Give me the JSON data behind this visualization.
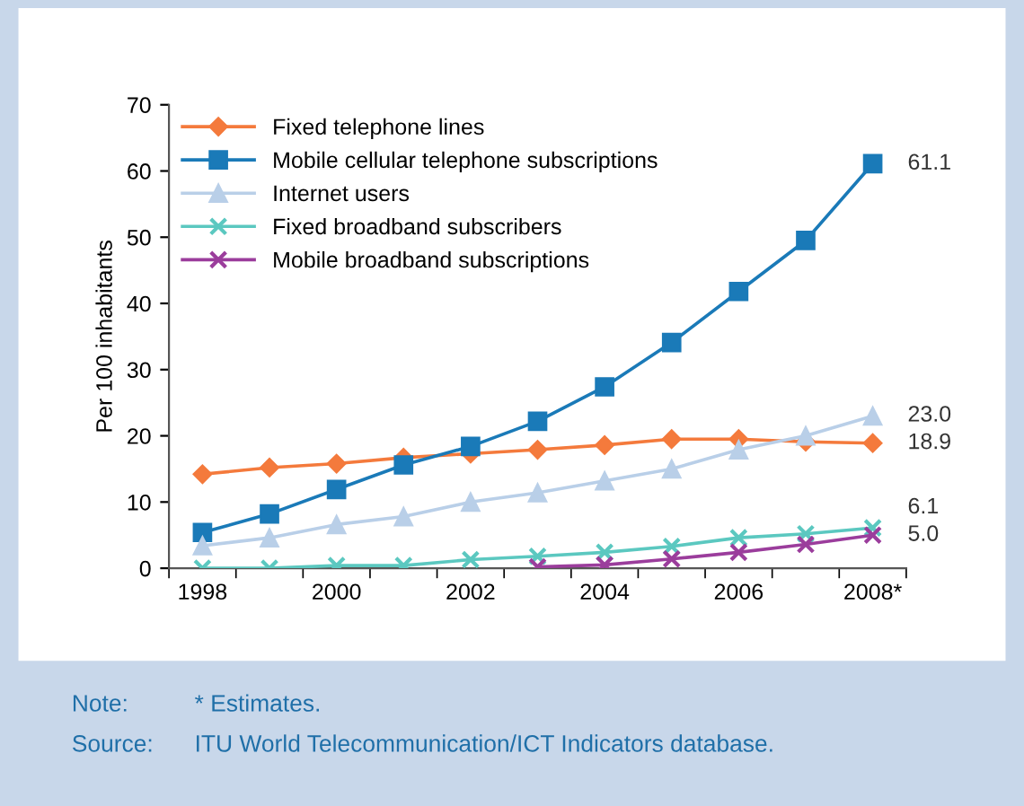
{
  "chart_data": {
    "type": "line",
    "ylabel": "Per 100 inhabitants",
    "categories": [
      "1998",
      null,
      "2000",
      null,
      "2002",
      null,
      "2004",
      null,
      "2006",
      null,
      "2008*"
    ],
    "series": [
      {
        "name": "Fixed telephone lines",
        "color": "#f47a3c",
        "marker": "diamond",
        "values": [
          14.2,
          15.2,
          15.8,
          16.7,
          17.3,
          17.9,
          18.6,
          19.5,
          19.5,
          19.1,
          18.9
        ],
        "value_labels": [
          null,
          null,
          null,
          null,
          null,
          null,
          null,
          null,
          null,
          null,
          "18.9"
        ]
      },
      {
        "name": "Mobile cellular telephone subscriptions",
        "color": "#1a7ab8",
        "marker": "square",
        "values": [
          5.4,
          8.2,
          11.9,
          15.6,
          18.4,
          22.2,
          27.4,
          34.1,
          41.8,
          49.5,
          61.1
        ],
        "value_labels": [
          null,
          null,
          null,
          null,
          null,
          null,
          null,
          null,
          null,
          null,
          "61.1"
        ]
      },
      {
        "name": "Internet users",
        "color": "#b9cfe8",
        "marker": "triangle",
        "values": [
          3.4,
          4.6,
          6.6,
          7.8,
          10.0,
          11.4,
          13.2,
          15.0,
          17.9,
          20.0,
          23.0
        ],
        "value_labels": [
          null,
          null,
          null,
          null,
          null,
          null,
          null,
          null,
          null,
          null,
          "23.0"
        ]
      },
      {
        "name": "Fixed broadband subscribers",
        "color": "#5bc8c0",
        "marker": "cross",
        "values": [
          0.0,
          0.0,
          0.4,
          0.4,
          1.3,
          1.8,
          2.4,
          3.3,
          4.6,
          5.2,
          6.1
        ],
        "value_labels": [
          null,
          null,
          null,
          null,
          null,
          null,
          null,
          null,
          null,
          null,
          "6.1"
        ]
      },
      {
        "name": "Mobile broadband subscriptions",
        "color": "#9b3d9c",
        "marker": "cross",
        "values": [
          null,
          null,
          null,
          null,
          null,
          0.2,
          0.5,
          1.4,
          2.4,
          3.6,
          5.0
        ],
        "value_labels": [
          null,
          null,
          null,
          null,
          null,
          null,
          null,
          null,
          null,
          null,
          "5.0"
        ]
      }
    ],
    "ylim": [
      0,
      70
    ],
    "yticks": [
      0,
      10,
      20,
      30,
      40,
      50,
      60,
      70
    ],
    "grid": false,
    "legend": "top left",
    "annotations": [
      "Note:",
      "* Estimates.",
      "Source:",
      "ITU World Telecommunication/ICT Indicators database."
    ]
  }
}
